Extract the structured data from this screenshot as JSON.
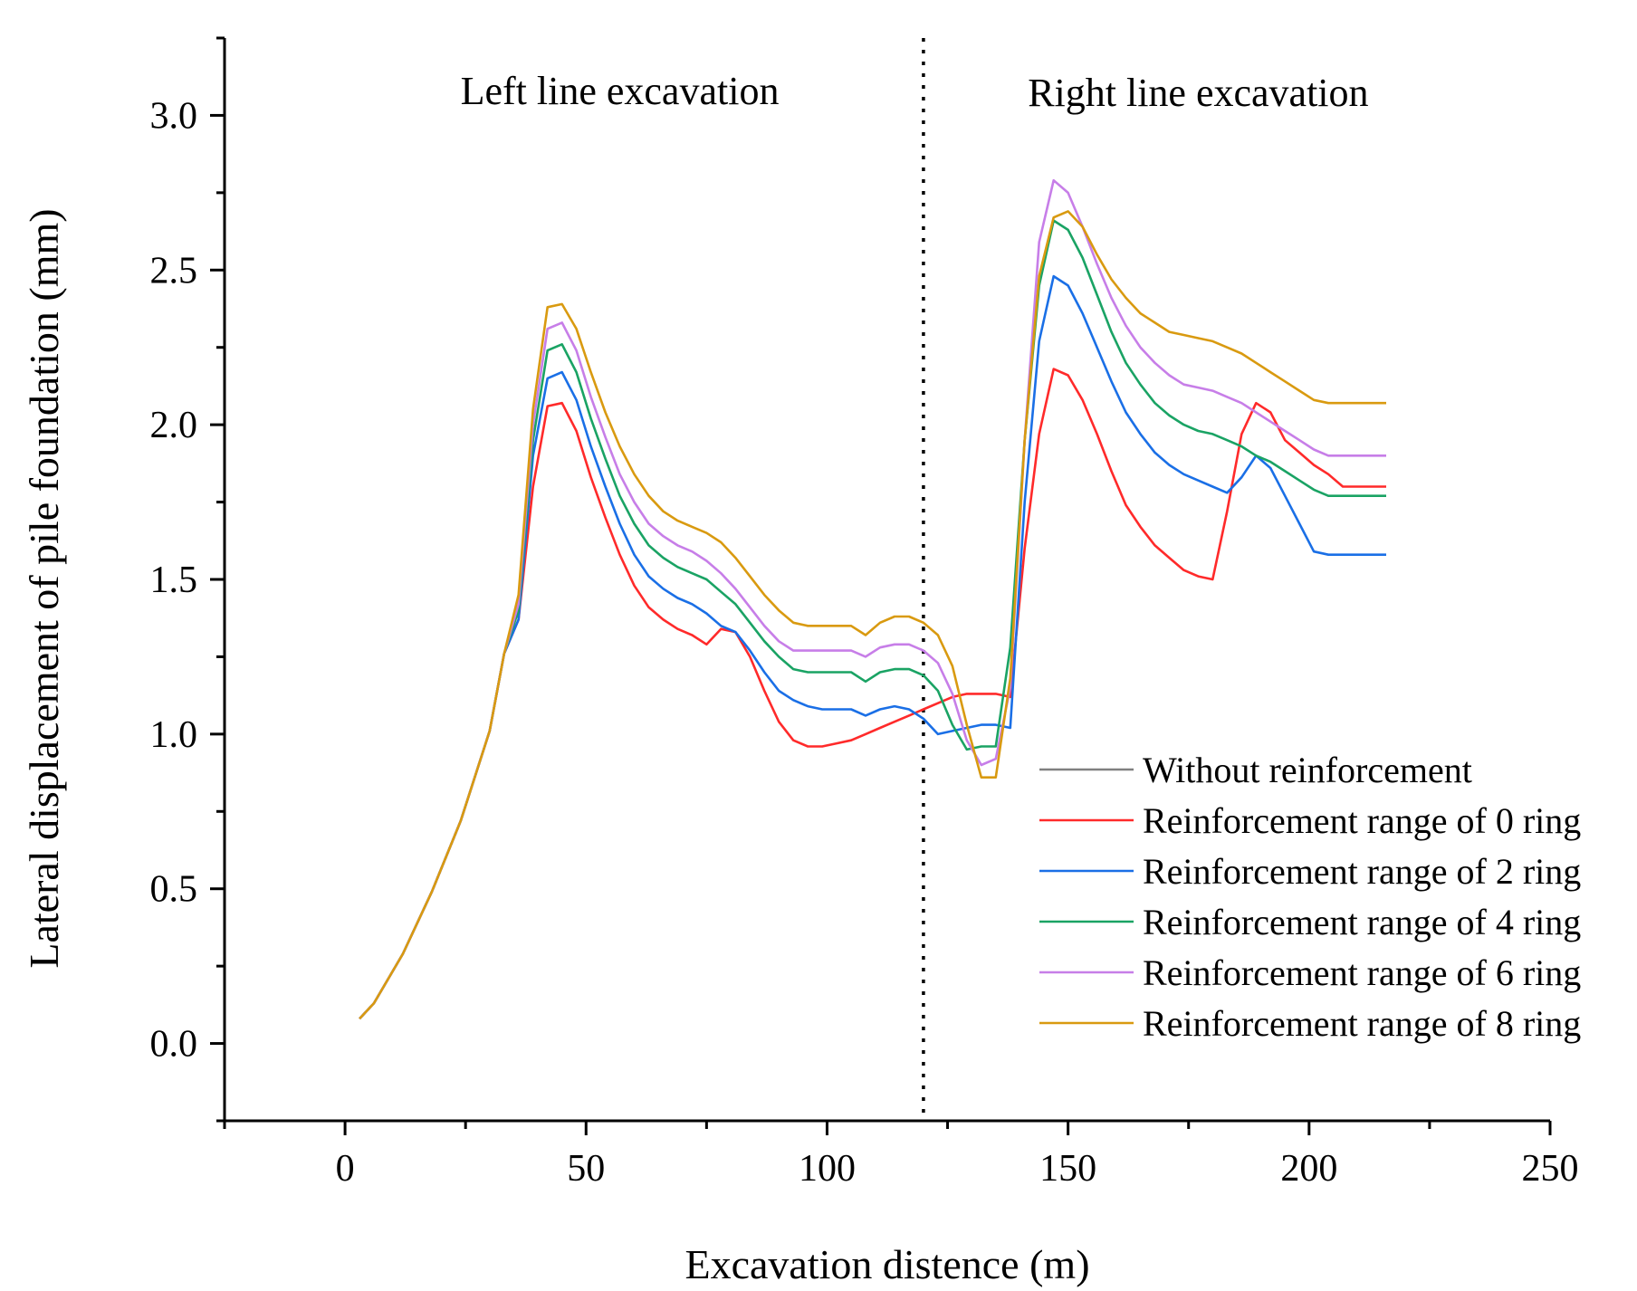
{
  "chart_data": {
    "type": "line",
    "title": "",
    "xlabel": "Excavation distence (m)",
    "ylabel": "Lateral displacement of pile foundation (mm)",
    "xlim": [
      -25,
      250
    ],
    "ylim": [
      -0.25,
      3.25
    ],
    "xticks": [
      0,
      50,
      100,
      150,
      200,
      250
    ],
    "xtick_labels": [
      "0",
      "50",
      "100",
      "150",
      "200",
      "250"
    ],
    "yticks": [
      0.0,
      0.5,
      1.0,
      1.5,
      2.0,
      2.5,
      3.0
    ],
    "ytick_labels": [
      "0.0",
      "0.5",
      "1.0",
      "1.5",
      "2.0",
      "2.5",
      "3.0"
    ],
    "divider_x": 120,
    "annotations": [
      "Left line excavation",
      "Right line excavation"
    ],
    "legend_position": "bottom-right",
    "series": [
      {
        "name": "Without reinforcement",
        "color": "#808080",
        "x": [],
        "y": []
      },
      {
        "name": "Reinforcement range of 0 ring",
        "color": "#ff2a2a",
        "x": [
          3,
          6,
          12,
          18,
          24,
          30,
          33,
          36,
          39,
          42,
          45,
          48,
          51,
          54,
          57,
          60,
          63,
          66,
          69,
          72,
          75,
          78,
          81,
          84,
          87,
          90,
          93,
          96,
          99,
          102,
          105,
          108,
          111,
          114,
          117,
          120,
          123,
          126,
          129,
          132,
          135,
          138,
          141,
          144,
          147,
          150,
          153,
          156,
          159,
          162,
          165,
          168,
          171,
          174,
          177,
          180,
          183,
          186,
          189,
          192,
          195,
          198,
          201,
          204,
          207,
          216
        ],
        "y": [
          0.08,
          0.13,
          0.29,
          0.49,
          0.72,
          1.01,
          1.26,
          1.37,
          1.8,
          2.06,
          2.07,
          1.98,
          1.83,
          1.7,
          1.58,
          1.48,
          1.41,
          1.37,
          1.34,
          1.32,
          1.29,
          1.34,
          1.33,
          1.25,
          1.14,
          1.04,
          0.98,
          0.96,
          0.96,
          0.97,
          0.98,
          1.0,
          1.02,
          1.04,
          1.06,
          1.08,
          1.1,
          1.12,
          1.13,
          1.13,
          1.13,
          1.12,
          1.6,
          1.97,
          2.18,
          2.16,
          2.08,
          1.97,
          1.85,
          1.74,
          1.67,
          1.61,
          1.57,
          1.53,
          1.51,
          1.5,
          1.72,
          1.97,
          2.07,
          2.04,
          1.95,
          1.91,
          1.87,
          1.84,
          1.8,
          1.8
        ]
      },
      {
        "name": "Reinforcement range of 2 ring",
        "color": "#1a6fe6",
        "x": [
          3,
          6,
          12,
          18,
          24,
          30,
          33,
          36,
          39,
          42,
          45,
          48,
          51,
          54,
          57,
          60,
          63,
          66,
          69,
          72,
          75,
          78,
          81,
          84,
          87,
          90,
          93,
          96,
          99,
          102,
          105,
          108,
          111,
          114,
          117,
          120,
          123,
          126,
          129,
          132,
          135,
          138,
          141,
          144,
          147,
          150,
          153,
          156,
          159,
          162,
          165,
          168,
          171,
          174,
          177,
          180,
          183,
          186,
          189,
          192,
          195,
          198,
          201,
          204,
          207,
          216
        ],
        "y": [
          0.08,
          0.13,
          0.29,
          0.49,
          0.72,
          1.01,
          1.26,
          1.37,
          1.9,
          2.15,
          2.17,
          2.08,
          1.93,
          1.8,
          1.68,
          1.58,
          1.51,
          1.47,
          1.44,
          1.42,
          1.39,
          1.35,
          1.33,
          1.27,
          1.2,
          1.14,
          1.11,
          1.09,
          1.08,
          1.08,
          1.08,
          1.06,
          1.08,
          1.09,
          1.08,
          1.05,
          1.0,
          1.01,
          1.02,
          1.03,
          1.03,
          1.02,
          1.75,
          2.27,
          2.48,
          2.45,
          2.36,
          2.25,
          2.14,
          2.04,
          1.97,
          1.91,
          1.87,
          1.84,
          1.82,
          1.8,
          1.78,
          1.83,
          1.9,
          1.86,
          1.77,
          1.68,
          1.59,
          1.58,
          1.58,
          1.58
        ]
      },
      {
        "name": "Reinforcement range of 4 ring",
        "color": "#1aa364",
        "x": [
          3,
          6,
          12,
          18,
          24,
          30,
          33,
          36,
          39,
          42,
          45,
          48,
          51,
          54,
          57,
          60,
          63,
          66,
          69,
          72,
          75,
          78,
          81,
          84,
          87,
          90,
          93,
          96,
          99,
          102,
          105,
          108,
          111,
          114,
          117,
          120,
          123,
          126,
          129,
          132,
          135,
          138,
          141,
          144,
          147,
          150,
          153,
          156,
          159,
          162,
          165,
          168,
          171,
          174,
          177,
          180,
          183,
          186,
          189,
          192,
          195,
          198,
          201,
          204,
          207,
          216
        ],
        "y": [
          0.08,
          0.13,
          0.29,
          0.49,
          0.72,
          1.01,
          1.26,
          1.4,
          1.95,
          2.24,
          2.26,
          2.17,
          2.02,
          1.89,
          1.77,
          1.68,
          1.61,
          1.57,
          1.54,
          1.52,
          1.5,
          1.46,
          1.42,
          1.36,
          1.3,
          1.25,
          1.21,
          1.2,
          1.2,
          1.2,
          1.2,
          1.17,
          1.2,
          1.21,
          1.21,
          1.19,
          1.14,
          1.03,
          0.95,
          0.96,
          0.96,
          1.28,
          1.95,
          2.45,
          2.66,
          2.63,
          2.54,
          2.42,
          2.3,
          2.2,
          2.13,
          2.07,
          2.03,
          2.0,
          1.98,
          1.97,
          1.95,
          1.93,
          1.9,
          1.88,
          1.85,
          1.82,
          1.79,
          1.77,
          1.77,
          1.77
        ]
      },
      {
        "name": "Reinforcement range of 6 ring",
        "color": "#c77ee8",
        "x": [
          3,
          6,
          12,
          18,
          24,
          30,
          33,
          36,
          39,
          42,
          45,
          48,
          51,
          54,
          57,
          60,
          63,
          66,
          69,
          72,
          75,
          78,
          81,
          84,
          87,
          90,
          93,
          96,
          99,
          102,
          105,
          108,
          111,
          114,
          117,
          120,
          123,
          126,
          129,
          132,
          135,
          138,
          141,
          144,
          147,
          150,
          153,
          156,
          159,
          162,
          165,
          168,
          171,
          174,
          177,
          180,
          183,
          186,
          189,
          192,
          195,
          198,
          201,
          204,
          207,
          216
        ],
        "y": [
          0.08,
          0.13,
          0.29,
          0.49,
          0.72,
          1.01,
          1.26,
          1.42,
          2.0,
          2.31,
          2.33,
          2.24,
          2.09,
          1.96,
          1.84,
          1.75,
          1.68,
          1.64,
          1.61,
          1.59,
          1.56,
          1.52,
          1.47,
          1.41,
          1.35,
          1.3,
          1.27,
          1.27,
          1.27,
          1.27,
          1.27,
          1.25,
          1.28,
          1.29,
          1.29,
          1.27,
          1.23,
          1.13,
          0.98,
          0.9,
          0.92,
          1.15,
          1.95,
          2.59,
          2.79,
          2.75,
          2.64,
          2.52,
          2.41,
          2.32,
          2.25,
          2.2,
          2.16,
          2.13,
          2.12,
          2.11,
          2.09,
          2.07,
          2.04,
          2.01,
          1.98,
          1.95,
          1.92,
          1.9,
          1.9,
          1.9
        ]
      },
      {
        "name": "Reinforcement range of 8 ring",
        "color": "#d99a10",
        "x": [
          3,
          6,
          12,
          18,
          24,
          30,
          33,
          36,
          39,
          42,
          45,
          48,
          51,
          54,
          57,
          60,
          63,
          66,
          69,
          72,
          75,
          78,
          81,
          84,
          87,
          90,
          93,
          96,
          99,
          102,
          105,
          108,
          111,
          114,
          117,
          120,
          123,
          126,
          129,
          132,
          135,
          138,
          141,
          144,
          147,
          150,
          153,
          156,
          159,
          162,
          165,
          168,
          171,
          174,
          177,
          180,
          183,
          186,
          189,
          192,
          195,
          198,
          201,
          204,
          207,
          216
        ],
        "y": [
          0.08,
          0.13,
          0.29,
          0.49,
          0.72,
          1.01,
          1.26,
          1.45,
          2.05,
          2.38,
          2.39,
          2.31,
          2.17,
          2.04,
          1.93,
          1.84,
          1.77,
          1.72,
          1.69,
          1.67,
          1.65,
          1.62,
          1.57,
          1.51,
          1.45,
          1.4,
          1.36,
          1.35,
          1.35,
          1.35,
          1.35,
          1.32,
          1.36,
          1.38,
          1.38,
          1.36,
          1.32,
          1.22,
          1.03,
          0.86,
          0.86,
          1.18,
          1.95,
          2.48,
          2.67,
          2.69,
          2.64,
          2.55,
          2.47,
          2.41,
          2.36,
          2.33,
          2.3,
          2.29,
          2.28,
          2.27,
          2.25,
          2.23,
          2.2,
          2.17,
          2.14,
          2.11,
          2.08,
          2.07,
          2.07,
          2.07
        ]
      }
    ]
  }
}
